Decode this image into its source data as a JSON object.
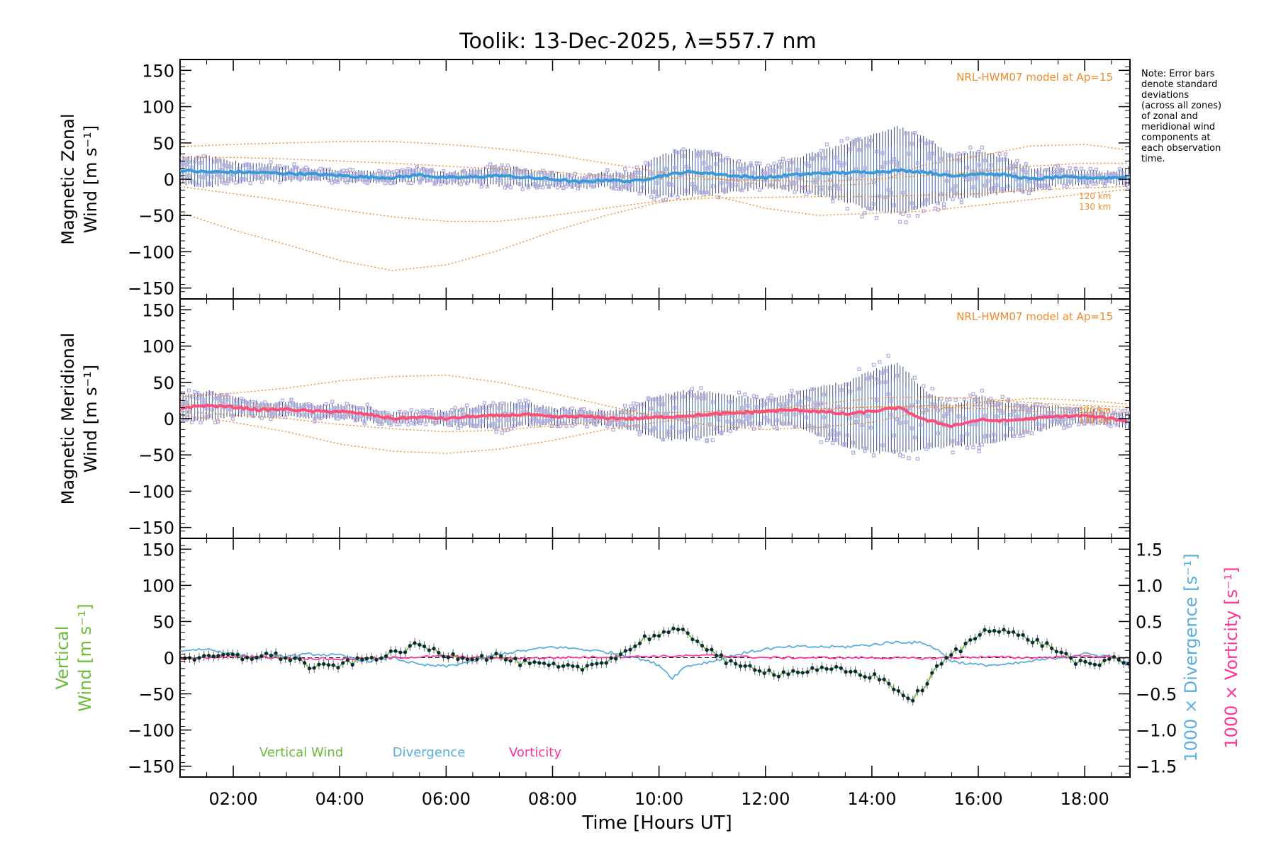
{
  "chart_data": {
    "type": "line",
    "title": "Toolik: 13-Dec-2025, λ=557.7 nm",
    "xlabel": "Time [Hours UT]",
    "xlim": [
      1.0,
      18.85
    ],
    "x_tick_labels": [
      "02:00",
      "04:00",
      "06:00",
      "08:00",
      "10:00",
      "12:00",
      "14:00",
      "16:00",
      "18:00"
    ],
    "x_tick_hours": [
      2,
      4,
      6,
      8,
      10,
      12,
      14,
      16,
      18
    ],
    "note": [
      "Note: Error bars",
      "denote standard",
      "deviations",
      "(across all zones)",
      "of zonal and",
      "meridional wind",
      "components at",
      "each observation",
      "time."
    ],
    "colors": {
      "zonal": "#3a9ad9",
      "meridional": "#ff4d7a",
      "vertical": "#6dbb3a",
      "divergence": "#5aaee0",
      "vorticity": "#ff3399",
      "model": "#f08a2a",
      "scatter": "#b0a8e0",
      "errorbar": "#1a2a6a"
    },
    "panels": [
      {
        "name": "zonal",
        "ylabel_lines": [
          "Magnetic Zonal",
          "Wind [m s⁻¹]"
        ],
        "ylim": [
          -165,
          165
        ],
        "yticks": [
          "150",
          "100",
          "50",
          "0",
          "−50",
          "−100",
          "−150"
        ],
        "ytick_values": [
          150,
          100,
          50,
          0,
          -50,
          -100,
          -150
        ],
        "model_label": "NRL-HWM07 model at Ap=15",
        "altitude_labels": [
          "120 km",
          "130 km"
        ],
        "series": {
          "x": [
            1.0,
            1.5,
            2.0,
            2.5,
            3.0,
            3.5,
            4.0,
            4.5,
            5.0,
            5.5,
            6.0,
            6.5,
            7.0,
            7.5,
            8.0,
            8.5,
            9.0,
            9.5,
            10.0,
            10.5,
            11.0,
            11.5,
            12.0,
            12.5,
            13.0,
            13.5,
            14.0,
            14.5,
            15.0,
            15.5,
            16.0,
            16.5,
            17.0,
            17.5,
            18.0,
            18.5,
            18.85
          ],
          "y": [
            12,
            10,
            10,
            9,
            8,
            7,
            5,
            3,
            2,
            6,
            2,
            3,
            5,
            2,
            0,
            -4,
            -1,
            -3,
            4,
            10,
            8,
            4,
            2,
            6,
            8,
            9,
            10,
            12,
            10,
            4,
            8,
            6,
            0,
            3,
            2,
            2,
            4
          ],
          "spread": [
            18,
            22,
            14,
            12,
            10,
            8,
            8,
            8,
            8,
            10,
            8,
            10,
            14,
            12,
            10,
            8,
            10,
            14,
            28,
            32,
            30,
            20,
            14,
            22,
            30,
            40,
            52,
            60,
            48,
            30,
            32,
            24,
            16,
            12,
            10,
            8,
            14
          ]
        },
        "models": [
          {
            "x": [
              1,
              2,
              3,
              4,
              5,
              6,
              7,
              8,
              9,
              10,
              11,
              12,
              13,
              14,
              15,
              16,
              17,
              18,
              18.85
            ],
            "y": [
              -46,
              -70,
              -90,
              -112,
              -126,
              -118,
              -98,
              -72,
              -50,
              -32,
              -22,
              -40,
              -50,
              -47,
              -44,
              -36,
              -28,
              -20,
              -14
            ]
          },
          {
            "x": [
              1,
              2,
              3,
              4,
              5,
              6,
              7,
              8,
              9,
              10,
              11,
              12,
              13,
              14,
              15,
              16,
              17,
              18,
              18.85
            ],
            "y": [
              -10,
              -20,
              -30,
              -42,
              -52,
              -58,
              -58,
              -50,
              -40,
              -30,
              -26,
              -25,
              -24,
              -24,
              -22,
              -20,
              -15,
              -12,
              -10
            ]
          },
          {
            "x": [
              1,
              2,
              3,
              4,
              5,
              6,
              7,
              8,
              9,
              10,
              11,
              12,
              13,
              14,
              15,
              16,
              17,
              18,
              18.85
            ],
            "y": [
              45,
              48,
              50,
              52,
              52,
              48,
              42,
              34,
              22,
              10,
              2,
              -8,
              -10,
              -6,
              20,
              32,
              46,
              48,
              40
            ]
          },
          {
            "x": [
              1,
              2,
              3,
              4,
              5,
              6,
              7,
              8,
              9,
              10,
              11,
              12,
              13,
              14,
              15,
              16,
              17,
              18,
              18.85
            ],
            "y": [
              30,
              30,
              28,
              25,
              22,
              18,
              14,
              10,
              5,
              2,
              0,
              -2,
              -3,
              0,
              5,
              10,
              18,
              22,
              22
            ]
          }
        ]
      },
      {
        "name": "meridional",
        "ylabel_lines": [
          "Magnetic Meridional",
          "Wind [m s⁻¹]"
        ],
        "ylim": [
          -165,
          165
        ],
        "yticks": [
          "150",
          "100",
          "50",
          "0",
          "−50",
          "−100",
          "−150"
        ],
        "ytick_values": [
          150,
          100,
          50,
          0,
          -50,
          -100,
          -150
        ],
        "model_label": "NRL-HWM07 model at Ap=15",
        "altitude_labels": [
          "120 km",
          "130 km"
        ],
        "series": {
          "x": [
            1.0,
            1.5,
            2.0,
            2.5,
            3.0,
            3.5,
            4.0,
            4.5,
            5.0,
            5.5,
            6.0,
            6.5,
            7.0,
            7.5,
            8.0,
            8.5,
            9.0,
            9.5,
            10.0,
            10.5,
            11.0,
            11.5,
            12.0,
            12.5,
            13.0,
            13.5,
            14.0,
            14.5,
            15.0,
            15.5,
            16.0,
            16.5,
            17.0,
            17.5,
            18.0,
            18.5,
            18.85
          ],
          "y": [
            15,
            18,
            16,
            12,
            13,
            10,
            10,
            6,
            0,
            2,
            0,
            3,
            4,
            6,
            2,
            3,
            1,
            0,
            2,
            4,
            6,
            8,
            10,
            12,
            10,
            6,
            10,
            15,
            -2,
            -10,
            -2,
            -3,
            0,
            3,
            4,
            0,
            -4
          ],
          "spread": [
            18,
            20,
            14,
            10,
            10,
            10,
            10,
            10,
            8,
            8,
            10,
            14,
            18,
            16,
            12,
            10,
            10,
            16,
            30,
            34,
            30,
            22,
            18,
            22,
            34,
            44,
            56,
            62,
            40,
            28,
            34,
            26,
            18,
            14,
            10,
            8,
            12
          ]
        },
        "models": [
          {
            "x": [
              1,
              2,
              3,
              4,
              5,
              6,
              7,
              8,
              9,
              10,
              11,
              12,
              13,
              14,
              15,
              16,
              17,
              18,
              18.85
            ],
            "y": [
              30,
              35,
              42,
              52,
              58,
              60,
              50,
              35,
              18,
              2,
              -10,
              -15,
              -12,
              -5,
              10,
              22,
              28,
              25,
              20
            ]
          },
          {
            "x": [
              1,
              2,
              3,
              4,
              5,
              6,
              7,
              8,
              9,
              10,
              11,
              12,
              13,
              14,
              15,
              16,
              17,
              18,
              18.85
            ],
            "y": [
              5,
              -5,
              -18,
              -35,
              -45,
              -48,
              -42,
              -30,
              -15,
              -5,
              5,
              12,
              20,
              28,
              30,
              28,
              22,
              18,
              16
            ]
          },
          {
            "x": [
              1,
              2,
              3,
              4,
              5,
              6,
              7,
              8,
              9,
              10,
              11,
              12,
              13,
              14,
              15,
              16,
              17,
              18,
              18.85
            ],
            "y": [
              20,
              18,
              14,
              8,
              4,
              2,
              2,
              4,
              6,
              8,
              10,
              12,
              14,
              16,
              18,
              18,
              16,
              14,
              12
            ]
          },
          {
            "x": [
              1,
              2,
              3,
              4,
              5,
              6,
              7,
              8,
              9,
              10,
              11,
              12,
              13,
              14,
              15,
              16,
              17,
              18,
              18.85
            ],
            "y": [
              10,
              5,
              0,
              -8,
              -14,
              -18,
              -16,
              -10,
              -4,
              0,
              4,
              8,
              12,
              16,
              16,
              14,
              10,
              8,
              6
            ]
          }
        ]
      },
      {
        "name": "vertical",
        "ylabel_lines": [
          "Vertical",
          "Wind [m s⁻¹]"
        ],
        "ylim": [
          -165,
          165
        ],
        "yticks": [
          "150",
          "100",
          "50",
          "0",
          "−50",
          "−100",
          "−150"
        ],
        "ytick_values": [
          150,
          100,
          50,
          0,
          -50,
          -100,
          -150
        ],
        "right_axis": {
          "ylim": [
            -1.65,
            1.65
          ],
          "yticks": [
            "1.5",
            "1.0",
            "0.5",
            "0.0",
            "−0.5",
            "−1.0",
            "−1.5"
          ],
          "ytick_values": [
            1.5,
            1.0,
            0.5,
            0.0,
            -0.5,
            -1.0,
            -1.5
          ],
          "label_divergence": "1000 × Divergence [s⁻¹]",
          "label_vorticity": "1000 × Vorticity [s⁻¹]"
        },
        "legend": [
          "Vertical Wind",
          "Divergence",
          "Vorticity"
        ],
        "vertical_wind": {
          "x": [
            1.0,
            1.25,
            1.5,
            1.75,
            2.0,
            2.25,
            2.5,
            2.75,
            3.0,
            3.25,
            3.5,
            3.75,
            4.0,
            4.25,
            4.5,
            4.75,
            5.0,
            5.25,
            5.5,
            5.75,
            6.0,
            6.25,
            6.5,
            6.75,
            7.0,
            7.25,
            7.5,
            7.75,
            8.0,
            8.25,
            8.5,
            8.75,
            9.0,
            9.25,
            9.5,
            9.75,
            10.0,
            10.25,
            10.5,
            10.75,
            11.0,
            11.25,
            11.5,
            11.75,
            12.0,
            12.25,
            12.5,
            12.75,
            13.0,
            13.25,
            13.5,
            13.75,
            14.0,
            14.25,
            14.5,
            14.7,
            15.0,
            15.25,
            15.5,
            15.75,
            16.0,
            16.25,
            16.5,
            16.75,
            17.0,
            17.25,
            17.5,
            17.75,
            18.0,
            18.25,
            18.5,
            18.75,
            18.85
          ],
          "y": [
            2,
            0,
            -2,
            3,
            2,
            -1,
            4,
            3,
            0,
            -4,
            -15,
            -12,
            -10,
            -6,
            -2,
            2,
            5,
            12,
            18,
            10,
            4,
            2,
            0,
            1,
            3,
            -5,
            -8,
            -10,
            -12,
            -14,
            -15,
            -10,
            -3,
            3,
            14,
            28,
            32,
            36,
            35,
            22,
            10,
            -5,
            -14,
            -12,
            -18,
            -22,
            -20,
            -18,
            -18,
            -16,
            -18,
            -22,
            -25,
            -32,
            -45,
            -62,
            -38,
            -12,
            5,
            16,
            32,
            42,
            38,
            30,
            25,
            18,
            10,
            -2,
            -10,
            -12,
            2,
            -5,
            -12
          ]
        },
        "divergence": {
          "x": [
            1.0,
            1.5,
            2.0,
            2.5,
            3.0,
            3.5,
            4.0,
            4.5,
            5.0,
            5.5,
            6.0,
            6.5,
            7.0,
            7.5,
            8.0,
            8.5,
            9.0,
            9.5,
            10.0,
            10.25,
            10.5,
            11.0,
            11.5,
            12.0,
            12.5,
            13.0,
            13.5,
            14.0,
            14.5,
            15.0,
            15.25,
            15.5,
            16.0,
            16.5,
            17.0,
            17.5,
            18.0,
            18.5,
            18.85
          ],
          "y": [
            0.1,
            0.12,
            0.05,
            0.0,
            0.02,
            0.05,
            0.03,
            -0.05,
            0.0,
            -0.1,
            -0.12,
            -0.05,
            0.05,
            0.1,
            0.15,
            0.12,
            0.08,
            0.02,
            -0.1,
            -0.28,
            -0.12,
            -0.05,
            0.05,
            0.12,
            0.15,
            0.15,
            0.15,
            0.18,
            0.22,
            0.2,
            0.1,
            -0.05,
            -0.1,
            -0.1,
            -0.05,
            0.0,
            0.05,
            0.02,
            -0.1
          ]
        },
        "vorticity": {
          "x": [
            1.0,
            2.0,
            3.0,
            4.0,
            5.0,
            6.0,
            7.0,
            8.0,
            9.0,
            10.0,
            11.0,
            12.0,
            13.0,
            14.0,
            15.0,
            16.0,
            17.0,
            18.0,
            18.85
          ],
          "y": [
            -0.02,
            0.02,
            0.0,
            -0.02,
            0.0,
            0.02,
            -0.01,
            0.0,
            0.01,
            0.02,
            0.03,
            0.0,
            0.0,
            0.0,
            -0.01,
            0.01,
            0.0,
            0.02,
            0.0
          ]
        }
      }
    ]
  }
}
